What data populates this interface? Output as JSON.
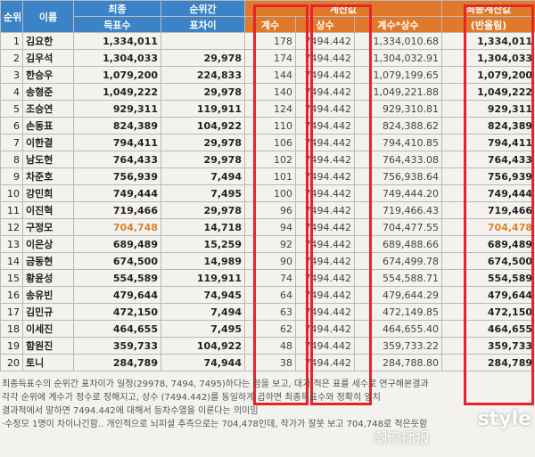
{
  "headers": {
    "rank": "순위",
    "name": "이름",
    "final_votes": [
      "최종",
      "득표수"
    ],
    "gap": [
      "순위간",
      "표차이"
    ],
    "calc_group": "계산값",
    "coef": "계수",
    "const": "상수",
    "product": "계수*상수",
    "final_calc": [
      "최종계산값",
      "(반올림)"
    ]
  },
  "rows": [
    {
      "rank": "1",
      "name": "김요한",
      "votes": "1,334,011",
      "gap": "",
      "coef": "178",
      "const": "7494.442",
      "product": "1,334,010.68",
      "rounded": "1,334,011"
    },
    {
      "rank": "2",
      "name": "김우석",
      "votes": "1,304,033",
      "gap": "29,978",
      "coef": "174",
      "const": "7494.442",
      "product": "1,304,032.91",
      "rounded": "1,304,033"
    },
    {
      "rank": "3",
      "name": "한승우",
      "votes": "1,079,200",
      "gap": "224,833",
      "coef": "144",
      "const": "7494.442",
      "product": "1,079,199.65",
      "rounded": "1,079,200"
    },
    {
      "rank": "4",
      "name": "송형준",
      "votes": "1,049,222",
      "gap": "29,978",
      "coef": "140",
      "const": "7494.442",
      "product": "1,049,221.88",
      "rounded": "1,049,222"
    },
    {
      "rank": "5",
      "name": "조승연",
      "votes": "929,311",
      "gap": "119,911",
      "coef": "124",
      "const": "7494.442",
      "product": "929,310.81",
      "rounded": "929,311"
    },
    {
      "rank": "6",
      "name": "손동표",
      "votes": "824,389",
      "gap": "104,922",
      "coef": "110",
      "const": "7494.442",
      "product": "824,388.62",
      "rounded": "824,389"
    },
    {
      "rank": "7",
      "name": "이한결",
      "votes": "794,411",
      "gap": "29,978",
      "coef": "106",
      "const": "7494.442",
      "product": "794,410.85",
      "rounded": "794,411"
    },
    {
      "rank": "8",
      "name": "남도현",
      "votes": "764,433",
      "gap": "29,978",
      "coef": "102",
      "const": "7494.442",
      "product": "764,433.08",
      "rounded": "764,433"
    },
    {
      "rank": "9",
      "name": "차준호",
      "votes": "756,939",
      "gap": "7,494",
      "coef": "101",
      "const": "7494.442",
      "product": "756,938.64",
      "rounded": "756,939"
    },
    {
      "rank": "10",
      "name": "강민희",
      "votes": "749,444",
      "gap": "7,495",
      "coef": "100",
      "const": "7494.442",
      "product": "749,444.20",
      "rounded": "749,444"
    },
    {
      "rank": "11",
      "name": "이진혁",
      "votes": "719,466",
      "gap": "29,978",
      "coef": "96",
      "const": "7494.442",
      "product": "719,466.43",
      "rounded": "719,466"
    },
    {
      "rank": "12",
      "name": "구정모",
      "votes": "704,748",
      "gap": "14,718",
      "coef": "94",
      "const": "7494.442",
      "product": "704,477.55",
      "rounded": "704,478",
      "highlight": true
    },
    {
      "rank": "13",
      "name": "이은상",
      "votes": "689,489",
      "gap": "15,259",
      "coef": "92",
      "const": "7494.442",
      "product": "689,488.66",
      "rounded": "689,489"
    },
    {
      "rank": "14",
      "name": "금동현",
      "votes": "674,500",
      "gap": "14,989",
      "coef": "90",
      "const": "7494.442",
      "product": "674,499.78",
      "rounded": "674,500"
    },
    {
      "rank": "15",
      "name": "황윤성",
      "votes": "554,589",
      "gap": "119,911",
      "coef": "74",
      "const": "7494.442",
      "product": "554,588.71",
      "rounded": "554,589"
    },
    {
      "rank": "16",
      "name": "송유빈",
      "votes": "479,644",
      "gap": "74,945",
      "coef": "64",
      "const": "7494.442",
      "product": "479,644.29",
      "rounded": "479,644"
    },
    {
      "rank": "17",
      "name": "김민규",
      "votes": "472,150",
      "gap": "7,494",
      "coef": "63",
      "const": "7494.442",
      "product": "472,149.85",
      "rounded": "472,150"
    },
    {
      "rank": "18",
      "name": "이세진",
      "votes": "464,655",
      "gap": "7,495",
      "coef": "62",
      "const": "7494.442",
      "product": "464,655.40",
      "rounded": "464,655"
    },
    {
      "rank": "19",
      "name": "함원진",
      "votes": "359,733",
      "gap": "104,922",
      "coef": "48",
      "const": "7494.442",
      "product": "359,733.22",
      "rounded": "359,733"
    },
    {
      "rank": "20",
      "name": "토니",
      "votes": "284,789",
      "gap": "74,944",
      "coef": "38",
      "const": "7494.442",
      "product": "284,788.80",
      "rounded": "284,789"
    }
  ],
  "notes": [
    "최종득표수의 순위간 표차이가 일정(29978, 7494, 7495)하다는 점을 보고, 대가 적은 표를 세수로 연구해본결과",
    "각각 순위에 계수가 정수로 정해지고, 상수 (7494.442)를 동일하게 곱하면 최종득표수와 정확히 일치",
    "결과적에서 말하면 7494.442에 대해서 등차수열을 이룬다는 의미임",
    "·수정모 1명이 차이나긴함.. 개인적으로 뇌피셜 추측으로는 704,478인데, 작가가 잘못 보고 704,748로 적은듯함"
  ],
  "watermark": {
    "brand": "style",
    "sub": "潮流播报"
  },
  "colors": {
    "header_blue": "#3b83c6",
    "header_orange": "#e07a2a",
    "highlight": "#d9822b",
    "box_red": "#e8232a"
  }
}
